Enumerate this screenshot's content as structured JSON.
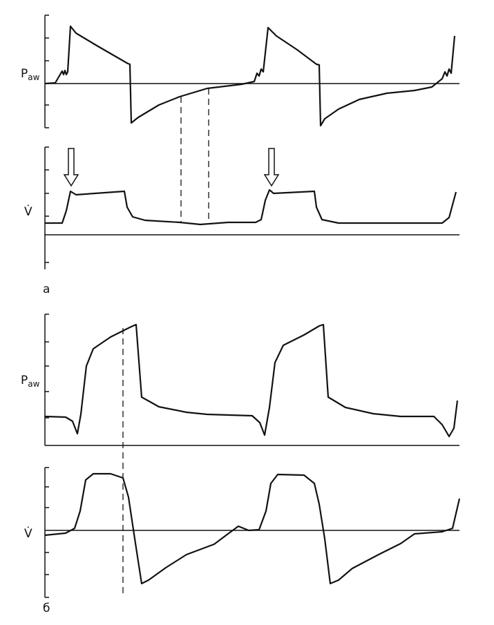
{
  "panels": [
    {
      "label": "а",
      "plots": [
        {
          "label": "P",
          "sub": "aw"
        },
        {
          "label": "V̇"
        }
      ]
    },
    {
      "label": "б",
      "plots": [
        {
          "label": "P",
          "sub": "aw"
        },
        {
          "label": "V̇"
        }
      ]
    }
  ]
}
